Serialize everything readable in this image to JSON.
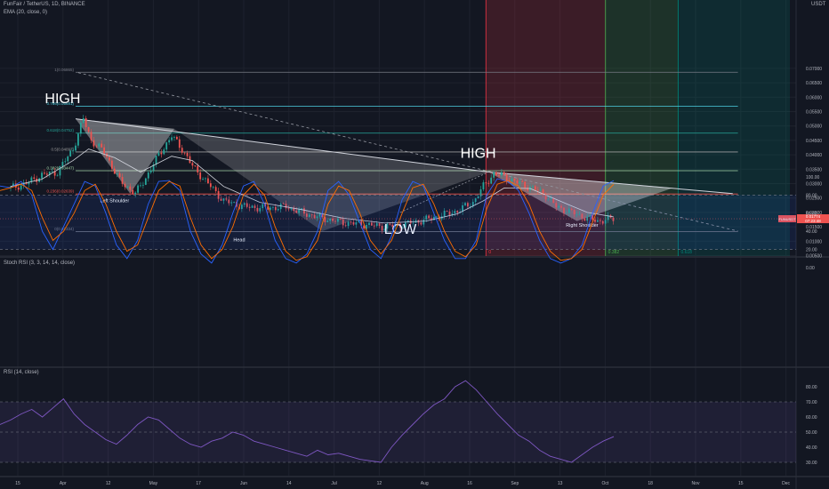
{
  "header": {
    "symbol_line": "FunFair / TetherUS, 1D, BINANCE",
    "ema_line": "EMA (20, close, 0)",
    "currency": "USDT"
  },
  "panes": {
    "stoch_label": "Stoch RSI (3, 3, 14, 14, close)",
    "rsi_label": "RSI (14, close)"
  },
  "price_tag": {
    "symbol": "FUNUSDT",
    "price": "0.01774",
    "countdown": "07:23:48"
  },
  "colors": {
    "bg": "#131722",
    "grid": "#1e222d",
    "up": "#26a69a",
    "down": "#ef5350",
    "ema": "#d1d4dc",
    "stoch_k": "#2962ff",
    "stoch_d": "#ff6d00",
    "rsi": "#7e57c2"
  },
  "chart_data": [
    {
      "type": "candlestick",
      "title": "FunFair / TetherUS, 1D, BINANCE",
      "ylim": [
        0.0,
        0.075
      ],
      "y_ticks": [
        0.07,
        0.065,
        0.06,
        0.055,
        0.05,
        0.045,
        0.04,
        0.035,
        0.03,
        0.025,
        0.02,
        0.015,
        0.01,
        0.005
      ],
      "y_tick_labels": [
        "0.07000",
        "0.06500",
        "0.06000",
        "0.05500",
        "0.05000",
        "0.04500",
        "0.04000",
        "0.03500",
        "0.03000",
        "0.02500",
        "0.02000",
        "0.01500",
        "0.01000",
        "0.00500"
      ],
      "x_tick_labels": [
        "15",
        "Apr",
        "12",
        "May",
        "17",
        "Jun",
        "14",
        "Jul",
        "12",
        "Aug",
        "16",
        "Sep",
        "13",
        "Oct",
        "18",
        "Nov",
        "15",
        "Dec"
      ],
      "close_points": [
        {
          "day": 0,
          "price": 0.0285
        },
        {
          "day": 6,
          "price": 0.03
        },
        {
          "day": 12,
          "price": 0.033
        },
        {
          "day": 18,
          "price": 0.034
        },
        {
          "day": 24,
          "price": 0.042
        },
        {
          "day": 28,
          "price": 0.0525
        },
        {
          "day": 31,
          "price": 0.045
        },
        {
          "day": 36,
          "price": 0.041
        },
        {
          "day": 42,
          "price": 0.031
        },
        {
          "day": 48,
          "price": 0.0265
        },
        {
          "day": 52,
          "price": 0.032
        },
        {
          "day": 57,
          "price": 0.04
        },
        {
          "day": 62,
          "price": 0.0465
        },
        {
          "day": 66,
          "price": 0.042
        },
        {
          "day": 70,
          "price": 0.036
        },
        {
          "day": 76,
          "price": 0.03
        },
        {
          "day": 82,
          "price": 0.024
        },
        {
          "day": 90,
          "price": 0.022
        },
        {
          "day": 98,
          "price": 0.0215
        },
        {
          "day": 106,
          "price": 0.022
        },
        {
          "day": 112,
          "price": 0.02
        },
        {
          "day": 120,
          "price": 0.018
        },
        {
          "day": 128,
          "price": 0.0165
        },
        {
          "day": 136,
          "price": 0.0158
        },
        {
          "day": 144,
          "price": 0.015
        },
        {
          "day": 152,
          "price": 0.016
        },
        {
          "day": 160,
          "price": 0.0175
        },
        {
          "day": 166,
          "price": 0.019
        },
        {
          "day": 172,
          "price": 0.0205
        },
        {
          "day": 178,
          "price": 0.0235
        },
        {
          "day": 182,
          "price": 0.029
        },
        {
          "day": 186,
          "price": 0.0335
        },
        {
          "day": 190,
          "price": 0.0325
        },
        {
          "day": 196,
          "price": 0.03
        },
        {
          "day": 202,
          "price": 0.028
        },
        {
          "day": 206,
          "price": 0.026
        },
        {
          "day": 210,
          "price": 0.022
        },
        {
          "day": 216,
          "price": 0.02
        },
        {
          "day": 222,
          "price": 0.018
        },
        {
          "day": 226,
          "price": 0.017
        },
        {
          "day": 232,
          "price": 0.0178
        }
      ],
      "ema_points": [
        {
          "day": 0,
          "price": 0.029
        },
        {
          "day": 12,
          "price": 0.0315
        },
        {
          "day": 24,
          "price": 0.038
        },
        {
          "day": 30,
          "price": 0.042
        },
        {
          "day": 40,
          "price": 0.039
        },
        {
          "day": 50,
          "price": 0.034
        },
        {
          "day": 62,
          "price": 0.0395
        },
        {
          "day": 70,
          "price": 0.038
        },
        {
          "day": 82,
          "price": 0.029
        },
        {
          "day": 96,
          "price": 0.0235
        },
        {
          "day": 112,
          "price": 0.021
        },
        {
          "day": 128,
          "price": 0.018
        },
        {
          "day": 144,
          "price": 0.0163
        },
        {
          "day": 160,
          "price": 0.017
        },
        {
          "day": 172,
          "price": 0.0195
        },
        {
          "day": 182,
          "price": 0.024
        },
        {
          "day": 190,
          "price": 0.0285
        },
        {
          "day": 200,
          "price": 0.0283
        },
        {
          "day": 210,
          "price": 0.0245
        },
        {
          "day": 222,
          "price": 0.02
        },
        {
          "day": 232,
          "price": 0.0185
        }
      ],
      "fib_levels": [
        {
          "ratio_label": "1(0.06865)",
          "price": 0.06865
        },
        {
          "ratio_label": "0.786(0.05681)",
          "price": 0.05681
        },
        {
          "ratio_label": "0.618(0.04752)",
          "price": 0.04752
        },
        {
          "ratio_label": "0.5(0.04097)",
          "price": 0.04097
        },
        {
          "ratio_label": "0.382(0.03447)",
          "price": 0.03447
        },
        {
          "ratio_label": "0.236(0.02639)",
          "price": 0.02639
        },
        {
          "ratio_label": "0(0.01334)",
          "price": 0.01334
        }
      ],
      "time_zones": [
        {
          "label": "0",
          "start_day": 183,
          "end_day": 229,
          "color": "#f23645"
        },
        {
          "label": "0.382",
          "start_day": 229,
          "end_day": 257,
          "color": "#4caf50"
        },
        {
          "label": "0.618",
          "start_day": 257,
          "end_day": 300,
          "color": "#00897b"
        }
      ],
      "annotations": [
        {
          "text": "HIGH",
          "day": 20,
          "price": 0.058,
          "size": "large"
        },
        {
          "text": "Left Shoulder",
          "day": 40,
          "price": 0.0235,
          "size": "small"
        },
        {
          "text": "Head",
          "day": 88,
          "price": 0.01,
          "size": "small"
        },
        {
          "text": "HIGH",
          "day": 180,
          "price": 0.039,
          "size": "large"
        },
        {
          "text": "LOW",
          "day": 150,
          "price": 0.0125,
          "size": "large"
        },
        {
          "text": "Right Shoulder",
          "day": 220,
          "price": 0.015,
          "size": "small"
        }
      ]
    },
    {
      "type": "line",
      "title": "Stoch RSI (3, 3, 14, 14, close)",
      "ylim": [
        0,
        100
      ],
      "y_tick_labels": [
        "100.00",
        "80.00",
        "60.00",
        "40.00",
        "20.00",
        "0.00"
      ],
      "bands": [
        80,
        20
      ],
      "series": [
        {
          "name": "K",
          "values": [
            90,
            88,
            95,
            80,
            40,
            20,
            45,
            70,
            95,
            90,
            60,
            25,
            10,
            30,
            70,
            95,
            96,
            85,
            40,
            15,
            5,
            25,
            60,
            90,
            95,
            70,
            30,
            10,
            5,
            15,
            40,
            85,
            95,
            80,
            50,
            20,
            10,
            35,
            75,
            95,
            90,
            60,
            30,
            10,
            10,
            30,
            80,
            98,
            95,
            85,
            60,
            30,
            10,
            5,
            10,
            25,
            60,
            90,
            96
          ]
        },
        {
          "name": "D",
          "values": [
            85,
            88,
            92,
            85,
            55,
            30,
            40,
            60,
            85,
            92,
            70,
            40,
            18,
            25,
            55,
            85,
            95,
            90,
            55,
            25,
            10,
            20,
            45,
            80,
            92,
            80,
            45,
            18,
            8,
            12,
            30,
            70,
            90,
            85,
            60,
            30,
            15,
            30,
            60,
            88,
            92,
            70,
            40,
            18,
            12,
            25,
            65,
            92,
            96,
            90,
            70,
            40,
            18,
            8,
            10,
            20,
            50,
            80,
            92
          ]
        }
      ]
    },
    {
      "type": "line",
      "title": "RSI (14, close)",
      "ylim": [
        25,
        90
      ],
      "y_tick_labels": [
        "80.00",
        "70.00",
        "60.00",
        "50.00",
        "40.00",
        "30.00"
      ],
      "bands": [
        70,
        50,
        30
      ],
      "series": [
        {
          "name": "RSI",
          "values": [
            55,
            58,
            62,
            65,
            60,
            66,
            72,
            62,
            55,
            50,
            45,
            42,
            48,
            55,
            60,
            58,
            52,
            46,
            42,
            40,
            44,
            46,
            50,
            48,
            44,
            42,
            40,
            38,
            36,
            34,
            38,
            35,
            36,
            34,
            32,
            31,
            30,
            40,
            48,
            55,
            62,
            68,
            72,
            80,
            84,
            78,
            70,
            62,
            55,
            48,
            44,
            38,
            34,
            32,
            30,
            35,
            40,
            44,
            47
          ]
        }
      ]
    }
  ]
}
